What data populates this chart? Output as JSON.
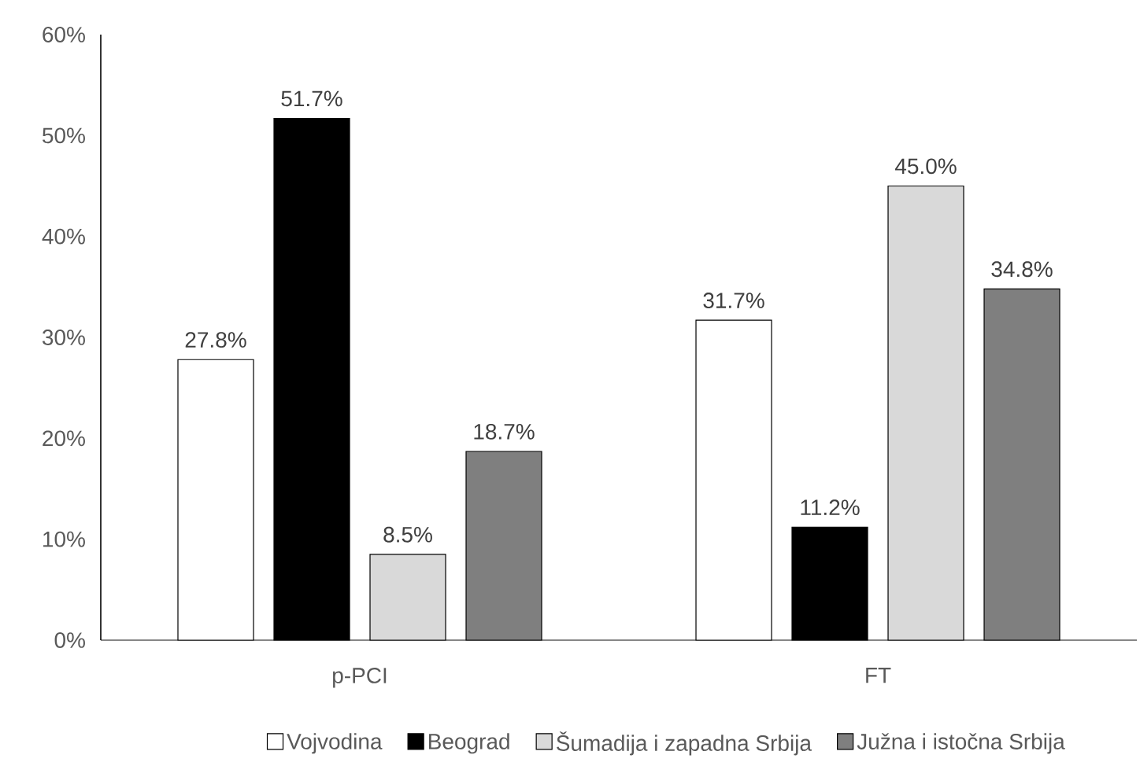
{
  "chart_data": {
    "type": "bar",
    "categories": [
      "p-PCI",
      "FT"
    ],
    "series": [
      {
        "name": "Vojvodina",
        "color": "#ffffff",
        "values": [
          27.8,
          31.7
        ],
        "value_labels": [
          "27.8%",
          "31.7%"
        ]
      },
      {
        "name": "Beograd",
        "color": "#000000",
        "values": [
          51.7,
          11.2
        ],
        "value_labels": [
          "51.7%",
          "11.2%"
        ]
      },
      {
        "name": "Šumadija i zapadna Srbija",
        "color": "#d9d9d9",
        "values": [
          8.5,
          45.0
        ],
        "value_labels": [
          "8.5%",
          "45.0%"
        ]
      },
      {
        "name": "Južna i istočna Srbija",
        "color": "#7f7f7f",
        "values": [
          18.7,
          34.8
        ],
        "value_labels": [
          "18.7%",
          "34.8%"
        ]
      }
    ],
    "ylim": [
      0,
      60
    ],
    "yticks": [
      {
        "value": 0,
        "label": "0%"
      },
      {
        "value": 10,
        "label": "10%"
      },
      {
        "value": 20,
        "label": "20%"
      },
      {
        "value": 30,
        "label": "30%"
      },
      {
        "value": 40,
        "label": "40%"
      },
      {
        "value": 50,
        "label": "50%"
      },
      {
        "value": 60,
        "label": "60%"
      }
    ],
    "grid": false,
    "legend": "bottom"
  }
}
